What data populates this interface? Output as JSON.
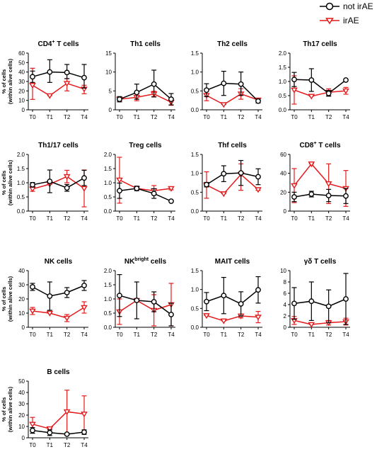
{
  "colors": {
    "not_irae": "#000000",
    "irae": "#e41a1c"
  },
  "legend": {
    "not_irae": "not irAE",
    "irae": "irAE"
  },
  "chart_data": [
    {
      "type": "line",
      "title": "CD4",
      "title_sup": "+",
      "title_rest": " T cells",
      "ylabel": [
        "% of cells",
        "(within alive cells)"
      ],
      "ylim": [
        0,
        60
      ],
      "yticks": [
        0,
        10,
        20,
        30,
        40,
        50,
        60
      ],
      "categories": [
        "T0",
        "T1",
        "T2",
        "T4"
      ],
      "series": [
        {
          "name": "not irAE",
          "values": [
            35,
            40,
            39.5,
            34
          ],
          "err_lo": [
            29,
            29,
            33,
            23
          ],
          "err_hi": [
            41,
            53,
            48,
            48
          ]
        },
        {
          "name": "irAE",
          "values": [
            26,
            15,
            28,
            22
          ],
          "err_lo": [
            11,
            15,
            20,
            17
          ],
          "err_hi": [
            44,
            15,
            33,
            26
          ]
        }
      ]
    },
    {
      "type": "line",
      "title": "Th1 cells",
      "title_sup": "",
      "title_rest": "",
      "ylabel": [],
      "ylim": [
        0,
        15
      ],
      "yticks": [
        0,
        5,
        10,
        15
      ],
      "categories": [
        "T0",
        "T1",
        "T2",
        "T4"
      ],
      "series": [
        {
          "name": "not irAE",
          "values": [
            2.8,
            4.6,
            6.8,
            2.8
          ],
          "err_lo": [
            2.1,
            2.8,
            3.4,
            1.3
          ],
          "err_hi": [
            3.5,
            6.8,
            10.5,
            4.3
          ]
        },
        {
          "name": "irAE",
          "values": [
            2.8,
            3.3,
            4.2,
            2.0
          ],
          "err_lo": [
            2.3,
            2.4,
            3.5,
            1.2
          ],
          "err_hi": [
            3.3,
            4.2,
            4.9,
            2.8
          ]
        }
      ]
    },
    {
      "type": "line",
      "title": "Th2 cells",
      "title_sup": "",
      "title_rest": "",
      "ylabel": [],
      "ylim": [
        0,
        1.5
      ],
      "yticks": [
        0,
        0.5,
        1.0,
        1.5
      ],
      "categories": [
        "T0",
        "T1",
        "T2",
        "T4"
      ],
      "series": [
        {
          "name": "not irAE",
          "values": [
            0.52,
            0.7,
            0.68,
            0.23
          ],
          "err_lo": [
            0.35,
            0.38,
            0.38,
            0.18
          ],
          "err_hi": [
            0.69,
            1.02,
            1.0,
            0.28
          ]
        },
        {
          "name": "irAE",
          "values": [
            0.38,
            0.14,
            0.42,
            0.26
          ],
          "err_lo": [
            0.24,
            0.14,
            0.28,
            0.21
          ],
          "err_hi": [
            0.52,
            0.14,
            0.56,
            0.31
          ]
        }
      ]
    },
    {
      "type": "line",
      "title": "Th17 cells",
      "title_sup": "",
      "title_rest": "",
      "ylabel": [],
      "ylim": [
        0,
        2.0
      ],
      "yticks": [
        0,
        0.5,
        1.0,
        1.5,
        2.0
      ],
      "categories": [
        "T0",
        "T1",
        "T2",
        "T4"
      ],
      "series": [
        {
          "name": "not irAE",
          "values": [
            1.07,
            1.05,
            0.58,
            1.05
          ],
          "err_lo": [
            0.82,
            0.65,
            0.48,
            1.02
          ],
          "err_hi": [
            1.32,
            1.45,
            0.68,
            1.08
          ]
        },
        {
          "name": "irAE",
          "values": [
            0.7,
            0.48,
            0.62,
            0.67
          ],
          "err_lo": [
            0.2,
            0.48,
            0.5,
            0.55
          ],
          "err_hi": [
            1.2,
            0.48,
            0.74,
            0.79
          ]
        }
      ]
    },
    {
      "type": "line",
      "title": "Th1/17 cells",
      "title_sup": "",
      "title_rest": "",
      "ylabel": [
        "% of cells",
        "(within alive cells)"
      ],
      "ylim": [
        0,
        2.0
      ],
      "yticks": [
        0,
        0.5,
        1.0,
        1.5,
        2.0
      ],
      "categories": [
        "T0",
        "T1",
        "T2",
        "T4"
      ],
      "series": [
        {
          "name": "not irAE",
          "values": [
            0.93,
            1.05,
            0.82,
            1.17
          ],
          "err_lo": [
            0.85,
            0.65,
            0.7,
            0.9
          ],
          "err_hi": [
            1.01,
            1.45,
            0.94,
            1.44
          ]
        },
        {
          "name": "irAE",
          "values": [
            0.78,
            0.95,
            1.22,
            0.8
          ],
          "err_lo": [
            0.7,
            0.95,
            1.0,
            0.15
          ],
          "err_hi": [
            0.86,
            0.95,
            1.44,
            1.45
          ]
        }
      ]
    },
    {
      "type": "line",
      "title": "Treg cells",
      "title_sup": "",
      "title_rest": "",
      "ylabel": [],
      "ylim": [
        0,
        2.0
      ],
      "yticks": [
        0,
        0.5,
        1.0,
        1.5,
        2.0
      ],
      "categories": [
        "T0",
        "T1",
        "T2",
        "T4"
      ],
      "series": [
        {
          "name": "not irAE",
          "values": [
            0.72,
            0.8,
            0.62,
            0.35
          ],
          "err_lo": [
            0.45,
            0.72,
            0.45,
            0.35
          ],
          "err_hi": [
            0.99,
            0.88,
            0.79,
            0.35
          ]
        },
        {
          "name": "irAE",
          "values": [
            1.1,
            0.8,
            0.72,
            0.8
          ],
          "err_lo": [
            0.28,
            0.75,
            0.58,
            0.75
          ],
          "err_hi": [
            1.9,
            0.85,
            0.9,
            0.85
          ]
        }
      ]
    },
    {
      "type": "line",
      "title": "Thf cells",
      "title_sup": "",
      "title_rest": "",
      "ylabel": [],
      "ylim": [
        0,
        1.5
      ],
      "yticks": [
        0,
        0.5,
        1.0,
        1.5
      ],
      "categories": [
        "T0",
        "T1",
        "T2",
        "T4"
      ],
      "series": [
        {
          "name": "not irAE",
          "values": [
            0.7,
            0.99,
            1.01,
            0.91
          ],
          "err_lo": [
            0.64,
            0.78,
            0.68,
            0.7
          ],
          "err_hi": [
            0.76,
            1.2,
            1.34,
            1.12
          ]
        },
        {
          "name": "irAE",
          "values": [
            0.69,
            0.46,
            0.97,
            0.57
          ],
          "err_lo": [
            0.34,
            0.46,
            0.55,
            0.55
          ],
          "err_hi": [
            1.04,
            0.46,
            1.25,
            0.59
          ]
        }
      ]
    },
    {
      "type": "line",
      "title": "CD8",
      "title_sup": "+",
      "title_rest": " T cells",
      "ylabel": [],
      "ylim": [
        0,
        60
      ],
      "yticks": [
        0,
        20,
        40,
        60
      ],
      "categories": [
        "T0",
        "T1",
        "T2",
        "T4"
      ],
      "series": [
        {
          "name": "not irAE",
          "values": [
            15,
            18,
            16.5,
            16
          ],
          "err_lo": [
            10,
            15,
            10,
            8
          ],
          "err_hi": [
            20,
            21,
            23,
            24
          ]
        },
        {
          "name": "irAE",
          "values": [
            27,
            50,
            29,
            24
          ],
          "err_lo": [
            9,
            50,
            8,
            5
          ],
          "err_hi": [
            45,
            50,
            50,
            43
          ]
        }
      ]
    },
    {
      "type": "line",
      "title": "NK cells",
      "title_sup": "",
      "title_rest": "",
      "ylabel": [
        "% of cells",
        "(within alive cells)"
      ],
      "ylim": [
        0,
        40
      ],
      "yticks": [
        0,
        10,
        20,
        30,
        40
      ],
      "categories": [
        "T0",
        "T1",
        "T2",
        "T4"
      ],
      "series": [
        {
          "name": "not irAE",
          "values": [
            28.5,
            22,
            24.5,
            29.5
          ],
          "err_lo": [
            26,
            12,
            21,
            26
          ],
          "err_hi": [
            31,
            32,
            28,
            33
          ]
        },
        {
          "name": "irAE",
          "values": [
            11.5,
            10,
            6.5,
            14
          ],
          "err_lo": [
            9,
            10,
            4,
            10
          ],
          "err_hi": [
            14,
            10,
            9,
            18
          ]
        }
      ]
    },
    {
      "type": "line",
      "title": "NK",
      "title_sup": "bright",
      "title_rest": " cells",
      "ylabel": [],
      "ylim": [
        0,
        2.0
      ],
      "yticks": [
        0,
        0.5,
        1.0,
        1.5,
        2.0
      ],
      "categories": [
        "T0",
        "T1",
        "T2",
        "T4"
      ],
      "series": [
        {
          "name": "not irAE",
          "values": [
            1.12,
            0.95,
            0.9,
            0.45
          ],
          "err_lo": [
            0.38,
            0.3,
            0.55,
            0.05
          ],
          "err_hi": [
            1.86,
            1.6,
            1.25,
            0.85
          ]
        },
        {
          "name": "irAE",
          "values": [
            0.55,
            0.95,
            0.6,
            0.8
          ],
          "err_lo": [
            0.1,
            0.95,
            0.05,
            0.05
          ],
          "err_hi": [
            1.0,
            0.95,
            1.15,
            1.55
          ]
        }
      ]
    },
    {
      "type": "line",
      "title": "MAIT cells",
      "title_sup": "",
      "title_rest": "",
      "ylabel": [],
      "ylim": [
        0,
        1.5
      ],
      "yticks": [
        0,
        0.5,
        1.0,
        1.5
      ],
      "categories": [
        "T0",
        "T1",
        "T2",
        "T4"
      ],
      "series": [
        {
          "name": "not irAE",
          "values": [
            0.68,
            0.84,
            0.62,
            0.99
          ],
          "err_lo": [
            0.44,
            0.36,
            0.3,
            0.64
          ],
          "err_hi": [
            0.92,
            1.32,
            0.94,
            1.34
          ]
        },
        {
          "name": "irAE",
          "values": [
            0.31,
            0.17,
            0.3,
            0.27
          ],
          "err_lo": [
            0.31,
            0.17,
            0.25,
            0.12
          ],
          "err_hi": [
            0.31,
            0.17,
            0.35,
            0.42
          ]
        }
      ]
    },
    {
      "type": "line",
      "title": "γδ T cells",
      "title_sup": "",
      "title_rest": "",
      "ylabel": [],
      "ylim": [
        0,
        10
      ],
      "yticks": [
        0,
        2,
        4,
        6,
        8,
        10
      ],
      "categories": [
        "T0",
        "T1",
        "T2",
        "T4"
      ],
      "series": [
        {
          "name": "not irAE",
          "values": [
            4.2,
            4.6,
            3.7,
            5.0
          ],
          "err_lo": [
            1.4,
            1.2,
            0.8,
            0.5
          ],
          "err_hi": [
            7.0,
            8.0,
            6.6,
            9.5
          ]
        },
        {
          "name": "irAE",
          "values": [
            1.2,
            0.5,
            0.8,
            1.0
          ],
          "err_lo": [
            0.5,
            0.5,
            0.4,
            0.4
          ],
          "err_hi": [
            1.9,
            0.5,
            1.2,
            1.6
          ]
        }
      ]
    },
    {
      "type": "line",
      "title": "B cells",
      "title_sup": "",
      "title_rest": "",
      "ylabel": [
        "% of cells",
        "(within alive cells)"
      ],
      "ylim": [
        0,
        50
      ],
      "yticks": [
        0,
        10,
        20,
        30,
        40,
        50
      ],
      "categories": [
        "T0",
        "T1",
        "T2",
        "T4"
      ],
      "series": [
        {
          "name": "not irAE",
          "values": [
            6.5,
            4.5,
            3.2,
            5.0
          ],
          "err_lo": [
            4,
            2,
            3.2,
            3
          ],
          "err_hi": [
            9,
            7,
            3.2,
            7
          ]
        },
        {
          "name": "irAE",
          "values": [
            12,
            8,
            23,
            21
          ],
          "err_lo": [
            6,
            8,
            4,
            5
          ],
          "err_hi": [
            18,
            8,
            42,
            37
          ]
        }
      ]
    }
  ]
}
